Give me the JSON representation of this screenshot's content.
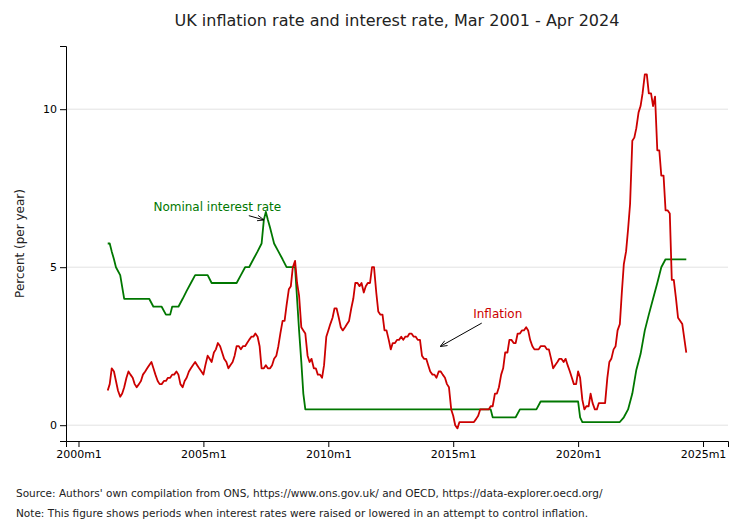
{
  "chart_data": {
    "type": "line",
    "title": "UK inflation rate and interest rate, Mar 2001 - Apr 2024",
    "y_label": "Percent (per year)",
    "source": "Source: Authors' own compilation from ONS, https://www.ons.gov.uk/ and OECD, https://data-explorer.oecd.org/",
    "note": "Note: This figure shows periods when interest rates were raised or lowered in an attempt to control inflation.",
    "xlim": [
      1999.5,
      2026.0
    ],
    "xticks": [
      {
        "value": 2000.0,
        "label": "2000m1"
      },
      {
        "value": 2005.0,
        "label": "2005m1"
      },
      {
        "value": 2010.0,
        "label": "2010m1"
      },
      {
        "value": 2015.0,
        "label": "2015m1"
      },
      {
        "value": 2020.0,
        "label": "2020m1"
      },
      {
        "value": 2025.0,
        "label": "2025m1"
      }
    ],
    "ylim": [
      -0.5,
      12.0
    ],
    "yticks": [
      0,
      5,
      10
    ],
    "grid": true,
    "annotations": [
      {
        "text": "Nominal interest rate",
        "xy": [
          2007.4,
          6.5
        ],
        "xytext": [
          2003.0,
          6.9
        ],
        "color": "#007700"
      },
      {
        "text": "Inflation",
        "xy": [
          2014.5,
          2.5
        ],
        "xytext": [
          2015.8,
          3.5
        ],
        "color": "#cc0000"
      }
    ],
    "series": [
      {
        "color": "#007700",
        "x": [
          2001.17,
          2001.25,
          2001.33,
          2001.42,
          2001.5,
          2001.67,
          2001.83,
          2002.0,
          2002.17,
          2002.33,
          2002.5,
          2002.67,
          2002.83,
          2003.0,
          2003.17,
          2003.33,
          2003.5,
          2003.67,
          2003.75,
          2003.83,
          2004.0,
          2004.17,
          2004.33,
          2004.5,
          2004.67,
          2004.83,
          2005.0,
          2005.17,
          2005.33,
          2005.5,
          2005.67,
          2005.83,
          2006.0,
          2006.17,
          2006.33,
          2006.5,
          2006.67,
          2006.83,
          2007.0,
          2007.17,
          2007.33,
          2007.42,
          2007.5,
          2007.58,
          2007.67,
          2007.75,
          2007.83,
          2008.0,
          2008.17,
          2008.33,
          2008.5,
          2008.67,
          2008.83,
          2008.92,
          2009.0,
          2009.08,
          2009.17,
          2009.33,
          2009.5,
          2009.67,
          2009.83,
          2010.0,
          2010.17,
          2010.33,
          2010.5,
          2010.67,
          2010.83,
          2011.0,
          2011.17,
          2011.33,
          2011.5,
          2011.67,
          2011.83,
          2012.0,
          2012.17,
          2012.33,
          2012.5,
          2012.67,
          2012.83,
          2013.0,
          2013.17,
          2013.33,
          2013.5,
          2013.67,
          2013.83,
          2014.0,
          2014.17,
          2014.33,
          2014.5,
          2014.67,
          2014.83,
          2015.0,
          2015.17,
          2015.33,
          2015.5,
          2015.67,
          2015.83,
          2016.0,
          2016.17,
          2016.33,
          2016.5,
          2016.58,
          2016.67,
          2016.83,
          2017.0,
          2017.17,
          2017.33,
          2017.5,
          2017.67,
          2017.83,
          2018.0,
          2018.17,
          2018.33,
          2018.5,
          2018.67,
          2018.83,
          2019.0,
          2019.17,
          2019.33,
          2019.5,
          2019.67,
          2019.83,
          2020.0,
          2020.08,
          2020.17,
          2020.25,
          2020.33,
          2020.5,
          2020.67,
          2020.83,
          2021.0,
          2021.17,
          2021.33,
          2021.5,
          2021.67,
          2021.83,
          2022.0,
          2022.17,
          2022.33,
          2022.5,
          2022.67,
          2022.83,
          2023.0,
          2023.17,
          2023.33,
          2023.5,
          2023.67,
          2023.83,
          2024.0,
          2024.17,
          2024.33
        ],
        "values": [
          5.75,
          5.75,
          5.5,
          5.25,
          5.0,
          4.75,
          4.0,
          4.0,
          4.0,
          4.0,
          4.0,
          4.0,
          4.0,
          3.75,
          3.75,
          3.75,
          3.5,
          3.5,
          3.75,
          3.75,
          3.75,
          4.0,
          4.25,
          4.5,
          4.75,
          4.75,
          4.75,
          4.75,
          4.5,
          4.5,
          4.5,
          4.5,
          4.5,
          4.5,
          4.5,
          4.75,
          5.0,
          5.0,
          5.25,
          5.5,
          5.75,
          6.5,
          6.75,
          6.5,
          6.25,
          6.0,
          5.75,
          5.5,
          5.25,
          5.0,
          5.0,
          5.0,
          3.0,
          2.0,
          1.0,
          0.5,
          0.5,
          0.5,
          0.5,
          0.5,
          0.5,
          0.5,
          0.5,
          0.5,
          0.5,
          0.5,
          0.5,
          0.5,
          0.5,
          0.5,
          0.5,
          0.5,
          0.5,
          0.5,
          0.5,
          0.5,
          0.5,
          0.5,
          0.5,
          0.5,
          0.5,
          0.5,
          0.5,
          0.5,
          0.5,
          0.5,
          0.5,
          0.5,
          0.5,
          0.5,
          0.5,
          0.5,
          0.5,
          0.5,
          0.5,
          0.5,
          0.5,
          0.5,
          0.5,
          0.5,
          0.5,
          0.25,
          0.25,
          0.25,
          0.25,
          0.25,
          0.25,
          0.25,
          0.5,
          0.5,
          0.5,
          0.5,
          0.5,
          0.75,
          0.75,
          0.75,
          0.75,
          0.75,
          0.75,
          0.75,
          0.75,
          0.75,
          0.75,
          0.25,
          0.1,
          0.1,
          0.1,
          0.1,
          0.1,
          0.1,
          0.1,
          0.1,
          0.1,
          0.1,
          0.1,
          0.25,
          0.5,
          1.0,
          1.75,
          2.25,
          3.0,
          3.5,
          4.0,
          4.5,
          5.0,
          5.25,
          5.25,
          5.25,
          5.25,
          5.25,
          5.25
        ]
      },
      {
        "color": "#cc0000",
        "x": [
          2001.17,
          2001.25,
          2001.33,
          2001.42,
          2001.5,
          2001.58,
          2001.67,
          2001.75,
          2001.83,
          2001.92,
          2002.0,
          2002.08,
          2002.17,
          2002.25,
          2002.33,
          2002.42,
          2002.5,
          2002.58,
          2002.67,
          2002.75,
          2002.83,
          2002.92,
          2003.0,
          2003.08,
          2003.17,
          2003.25,
          2003.33,
          2003.42,
          2003.5,
          2003.58,
          2003.67,
          2003.75,
          2003.83,
          2003.92,
          2004.0,
          2004.08,
          2004.17,
          2004.25,
          2004.33,
          2004.42,
          2004.5,
          2004.58,
          2004.67,
          2004.75,
          2004.83,
          2004.92,
          2005.0,
          2005.08,
          2005.17,
          2005.25,
          2005.33,
          2005.42,
          2005.5,
          2005.58,
          2005.67,
          2005.75,
          2005.83,
          2005.92,
          2006.0,
          2006.08,
          2006.17,
          2006.25,
          2006.33,
          2006.42,
          2006.5,
          2006.58,
          2006.67,
          2006.75,
          2006.83,
          2006.92,
          2007.0,
          2007.08,
          2007.17,
          2007.25,
          2007.33,
          2007.42,
          2007.5,
          2007.58,
          2007.67,
          2007.75,
          2007.83,
          2007.92,
          2008.0,
          2008.08,
          2008.17,
          2008.25,
          2008.33,
          2008.42,
          2008.5,
          2008.58,
          2008.67,
          2008.75,
          2008.83,
          2008.92,
          2009.0,
          2009.08,
          2009.17,
          2009.25,
          2009.33,
          2009.42,
          2009.5,
          2009.58,
          2009.67,
          2009.75,
          2009.83,
          2009.92,
          2010.0,
          2010.08,
          2010.17,
          2010.25,
          2010.33,
          2010.42,
          2010.5,
          2010.58,
          2010.67,
          2010.75,
          2010.83,
          2010.92,
          2011.0,
          2011.08,
          2011.17,
          2011.25,
          2011.33,
          2011.42,
          2011.5,
          2011.58,
          2011.67,
          2011.75,
          2011.83,
          2011.92,
          2012.0,
          2012.08,
          2012.17,
          2012.25,
          2012.33,
          2012.42,
          2012.5,
          2012.58,
          2012.67,
          2012.75,
          2012.83,
          2012.92,
          2013.0,
          2013.08,
          2013.17,
          2013.25,
          2013.33,
          2013.42,
          2013.5,
          2013.58,
          2013.67,
          2013.75,
          2013.83,
          2013.92,
          2014.0,
          2014.08,
          2014.17,
          2014.25,
          2014.33,
          2014.42,
          2014.5,
          2014.58,
          2014.67,
          2014.75,
          2014.83,
          2014.92,
          2015.0,
          2015.08,
          2015.17,
          2015.25,
          2015.33,
          2015.42,
          2015.5,
          2015.58,
          2015.67,
          2015.75,
          2015.83,
          2015.92,
          2016.0,
          2016.08,
          2016.17,
          2016.25,
          2016.33,
          2016.42,
          2016.5,
          2016.58,
          2016.67,
          2016.75,
          2016.83,
          2016.92,
          2017.0,
          2017.08,
          2017.17,
          2017.25,
          2017.33,
          2017.42,
          2017.5,
          2017.58,
          2017.67,
          2017.75,
          2017.83,
          2017.92,
          2018.0,
          2018.08,
          2018.17,
          2018.25,
          2018.33,
          2018.42,
          2018.5,
          2018.58,
          2018.67,
          2018.75,
          2018.83,
          2018.92,
          2019.0,
          2019.08,
          2019.17,
          2019.25,
          2019.33,
          2019.42,
          2019.5,
          2019.58,
          2019.67,
          2019.75,
          2019.83,
          2019.92,
          2020.0,
          2020.08,
          2020.17,
          2020.25,
          2020.33,
          2020.42,
          2020.5,
          2020.58,
          2020.67,
          2020.75,
          2020.83,
          2020.92,
          2021.0,
          2021.08,
          2021.17,
          2021.25,
          2021.33,
          2021.42,
          2021.5,
          2021.58,
          2021.67,
          2021.75,
          2021.83,
          2021.92,
          2022.0,
          2022.08,
          2022.17,
          2022.25,
          2022.33,
          2022.42,
          2022.5,
          2022.58,
          2022.67,
          2022.75,
          2022.83,
          2022.92,
          2023.0,
          2023.08,
          2023.17,
          2023.25,
          2023.33,
          2023.42,
          2023.5,
          2023.58,
          2023.67,
          2023.75,
          2023.83,
          2023.92,
          2024.0,
          2024.17,
          2024.33
        ],
        "values": [
          1.1,
          1.3,
          1.8,
          1.7,
          1.4,
          1.1,
          0.9,
          1.0,
          1.2,
          1.5,
          1.7,
          1.6,
          1.5,
          1.3,
          1.2,
          1.3,
          1.4,
          1.6,
          1.7,
          1.8,
          1.9,
          2.0,
          1.8,
          1.6,
          1.4,
          1.3,
          1.3,
          1.4,
          1.4,
          1.5,
          1.5,
          1.6,
          1.6,
          1.7,
          1.6,
          1.3,
          1.2,
          1.4,
          1.5,
          1.7,
          1.8,
          1.9,
          2.0,
          1.9,
          1.8,
          1.7,
          1.6,
          1.9,
          2.2,
          2.1,
          2.0,
          2.3,
          2.4,
          2.6,
          2.5,
          2.3,
          2.1,
          2.0,
          1.8,
          1.9,
          2.0,
          2.2,
          2.5,
          2.5,
          2.4,
          2.5,
          2.5,
          2.6,
          2.7,
          2.8,
          2.8,
          2.9,
          2.8,
          2.5,
          1.8,
          1.8,
          1.9,
          1.8,
          1.8,
          1.9,
          2.1,
          2.2,
          2.5,
          2.9,
          3.3,
          3.3,
          3.8,
          4.3,
          4.4,
          5.0,
          5.2,
          4.5,
          4.1,
          3.1,
          3.0,
          2.9,
          2.2,
          2.0,
          2.1,
          1.8,
          1.8,
          1.6,
          1.6,
          1.5,
          1.9,
          2.8,
          3.0,
          3.2,
          3.4,
          3.7,
          3.7,
          3.4,
          3.1,
          3.0,
          3.1,
          3.2,
          3.3,
          3.7,
          4.0,
          4.5,
          4.5,
          4.4,
          4.5,
          4.2,
          4.4,
          4.5,
          4.5,
          5.0,
          5.0,
          4.2,
          3.6,
          3.5,
          3.5,
          3.0,
          3.0,
          2.7,
          2.4,
          2.6,
          2.6,
          2.7,
          2.7,
          2.8,
          2.7,
          2.8,
          2.8,
          2.9,
          2.9,
          2.8,
          2.8,
          2.7,
          2.7,
          2.2,
          2.1,
          2.1,
          1.9,
          1.7,
          1.6,
          1.6,
          1.5,
          1.7,
          1.7,
          1.6,
          1.5,
          1.3,
          1.2,
          0.5,
          0.3,
          0.0,
          -0.1,
          0.1,
          0.1,
          0.1,
          0.1,
          0.1,
          0.1,
          0.1,
          0.1,
          0.2,
          0.3,
          0.5,
          0.5,
          0.5,
          0.5,
          0.5,
          0.6,
          0.6,
          1.0,
          1.0,
          1.2,
          1.6,
          1.8,
          2.3,
          2.3,
          2.7,
          2.7,
          2.6,
          2.6,
          2.9,
          2.9,
          3.0,
          3.0,
          3.1,
          3.0,
          2.7,
          2.5,
          2.4,
          2.4,
          2.4,
          2.5,
          2.5,
          2.5,
          2.4,
          2.4,
          2.1,
          1.8,
          1.9,
          2.0,
          2.1,
          2.1,
          2.0,
          2.1,
          1.9,
          1.7,
          1.5,
          1.3,
          1.3,
          1.7,
          1.5,
          0.8,
          0.5,
          0.6,
          0.6,
          1.0,
          0.7,
          0.5,
          0.5,
          0.7,
          0.7,
          0.7,
          0.7,
          1.5,
          2.0,
          2.1,
          2.4,
          2.5,
          3.0,
          3.2,
          4.2,
          5.1,
          5.5,
          6.2,
          7.0,
          9.0,
          9.1,
          9.4,
          9.9,
          10.1,
          10.5,
          11.1,
          11.1,
          10.5,
          10.5,
          10.1,
          10.4,
          8.7,
          8.7,
          7.9,
          7.9,
          6.8,
          6.8,
          6.7,
          4.6,
          4.6,
          4.0,
          3.4,
          3.2,
          2.3
        ]
      }
    ]
  }
}
